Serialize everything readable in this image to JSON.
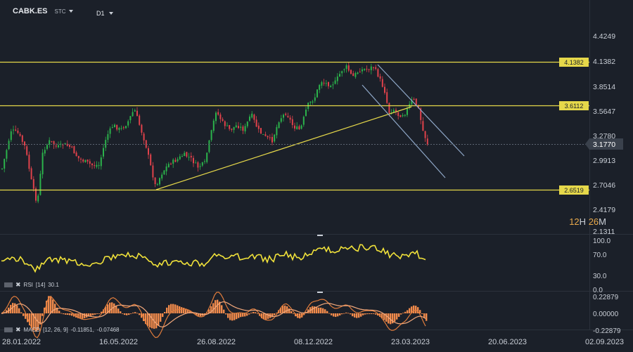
{
  "header": {
    "symbol": "CABK.ES",
    "source": "STC",
    "timeframe": "D1"
  },
  "price_axis": [
    "4.4249",
    "4.1382",
    "3.8514",
    "3.5647",
    "3.2780",
    "2.9913",
    "2.7046",
    "2.4179",
    "2.1311"
  ],
  "current_price": "3.1770",
  "level_labels": [
    "4.1382",
    "3.6112",
    "2.6519"
  ],
  "countdown": {
    "h": "12",
    "h_unit": "H",
    "m": "26",
    "m_unit": "M"
  },
  "rsi": {
    "axis": [
      "100.0",
      "70.0",
      "30.0",
      "0.0"
    ],
    "label": "RSI",
    "params": "[14]",
    "value": "30.1"
  },
  "macd": {
    "axis": [
      "0.22879",
      "0.00000",
      "-0.22879"
    ],
    "label": "MACD",
    "params": "[12, 26, 9]",
    "v1": "-0.11851,",
    "v2": "-0.07468"
  },
  "dates": [
    "28.01.2022",
    "16.05.2022",
    "26.08.2022",
    "08.12.2022",
    "23.03.2023",
    "20.06.2023",
    "02.09.2023"
  ],
  "colors": {
    "bg": "#1b2029",
    "up": "#2bb34b",
    "down": "#e0424b",
    "level": "#e6d84a",
    "channel": "#8fa8c8",
    "rsi": "#f1e23a",
    "macd_hist": "#f08a4b"
  }
}
